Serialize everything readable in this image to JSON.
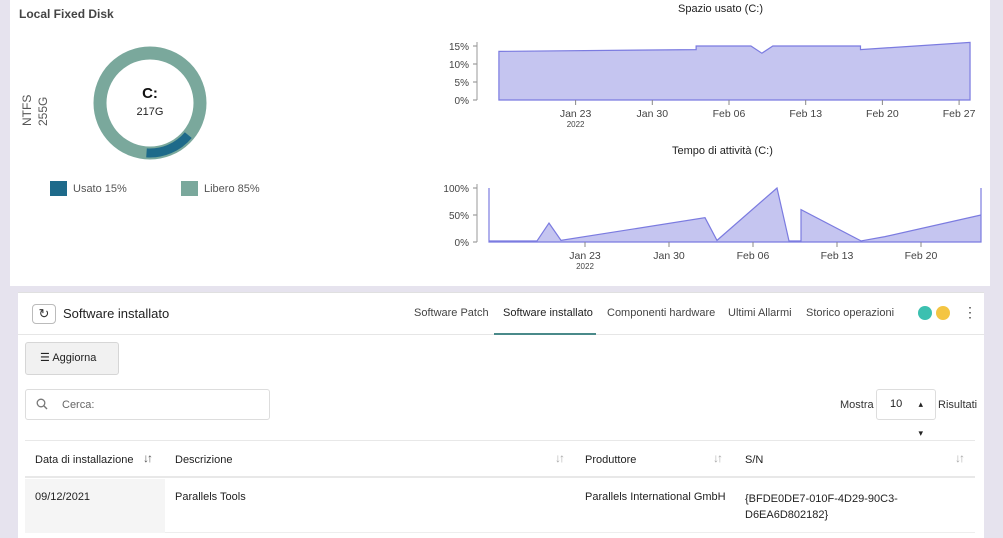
{
  "disk": {
    "title": "Local Fixed Disk",
    "fs": "NTFS",
    "size": "255G",
    "drive": "C:",
    "free_size": "217G",
    "used_fraction": 0.15,
    "legend_used": "Usato 15%",
    "legend_free": "Libero 85%",
    "used_color": "#1e6a8a",
    "free_color": "#7aa89c"
  },
  "charts": {
    "space_title": "Spazio usato (C:)",
    "uptime_title": "Tempo di attività (C:)"
  },
  "chart_data": [
    {
      "type": "area",
      "title": "Spazio usato (C:)",
      "yticks": [
        "15%",
        "10%",
        "5%",
        "0%"
      ],
      "xticks": [
        "Jan 23",
        "Jan 30",
        "Feb 06",
        "Feb 13",
        "Feb 20",
        "Feb 27"
      ],
      "xsub": "2022",
      "ylim": [
        0,
        15
      ],
      "x": [
        "2022-01-16",
        "2022-02-03",
        "2022-02-03",
        "2022-02-08",
        "2022-02-09",
        "2022-02-10",
        "2022-02-18",
        "2022-02-18",
        "2022-02-28"
      ],
      "values": [
        13.5,
        14,
        15,
        15,
        13,
        15,
        15,
        14,
        16
      ],
      "color": "#c5c5f0"
    },
    {
      "type": "area",
      "title": "Tempo di attività (C:)",
      "yticks": [
        "100%",
        "50%",
        "0%"
      ],
      "xticks": [
        "Jan 23",
        "Jan 30",
        "Feb 06",
        "Feb 13",
        "Feb 20"
      ],
      "xsub": "2022",
      "ylim": [
        0,
        100
      ],
      "x": [
        "2022-01-15",
        "2022-01-15",
        "2022-01-16",
        "2022-01-19",
        "2022-01-20",
        "2022-01-21",
        "2022-02-02",
        "2022-02-03",
        "2022-02-08",
        "2022-02-09",
        "2022-02-10",
        "2022-02-10",
        "2022-02-15",
        "2022-02-17",
        "2022-02-25",
        "2022-02-25"
      ],
      "values": [
        100,
        2,
        2,
        2,
        35,
        3,
        45,
        3,
        100,
        2,
        2,
        60,
        2,
        10,
        50,
        100
      ],
      "color": "#c5c5f0"
    }
  ],
  "panel": {
    "title": "Software installato",
    "tabs": [
      "Software Patch",
      "Software installato",
      "Componenti hardware",
      "Ultimi Allarmi",
      "Storico operazioni"
    ],
    "dot_colors": [
      "#3cc0b0",
      "#f4c542"
    ],
    "refresh_label": "Aggiorna",
    "search_placeholder": "Cerca:",
    "show_label": "Mostra",
    "page_size": "10",
    "results_label": "Risultati",
    "columns": [
      "Data di installazione",
      "Descrizione",
      "Produttore",
      "S/N"
    ],
    "rows": [
      {
        "date": "09/12/2021",
        "desc": "Parallels Tools",
        "vendor": "Parallels International GmbH",
        "sn_line1": "{BFDE0DE7-010F-4D29-90C3-",
        "sn_line2": "D6EA6D802182}"
      }
    ]
  }
}
